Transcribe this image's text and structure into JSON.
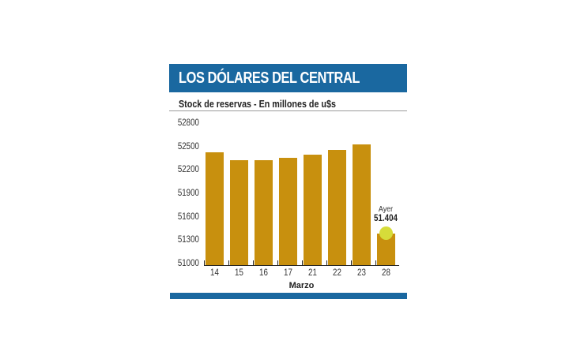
{
  "header": {
    "title": "LOS DÓLARES DEL CENTRAL"
  },
  "subtitle": "Stock de reservas - En millones de u$s",
  "colors": {
    "header_blue": "#1a68a0",
    "bar": "#c8900e",
    "highlight": "#d6dc3a"
  },
  "annotation": {
    "label": "Ayer",
    "value": "51.404"
  },
  "chart_data": {
    "type": "bar",
    "title": "LOS DÓLARES DEL CENTRAL",
    "subtitle": "Stock de reservas - En millones de u$s",
    "xlabel": "Marzo",
    "ylabel": "",
    "categories": [
      "14",
      "15",
      "16",
      "17",
      "21",
      "22",
      "23",
      "28"
    ],
    "values": [
      52450,
      52350,
      52350,
      52380,
      52420,
      52480,
      52550,
      51404
    ],
    "ylim": [
      51000,
      52800
    ],
    "yticks": [
      "52800",
      "52500",
      "52200",
      "51900",
      "51600",
      "51300",
      "51000"
    ],
    "grid": false,
    "legend": null,
    "annotations": [
      {
        "category": "28",
        "text": "Ayer",
        "value_text": "51.404"
      }
    ]
  }
}
